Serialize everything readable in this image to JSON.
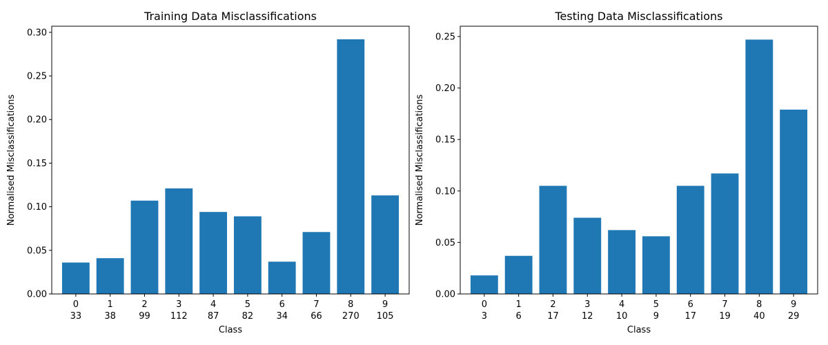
{
  "chart_data": [
    {
      "type": "bar",
      "title": "Training Data Misclassifications",
      "xlabel": "Class",
      "ylabel": "Normalised Misclassifications",
      "categories": [
        "0",
        "1",
        "2",
        "3",
        "4",
        "5",
        "6",
        "7",
        "8",
        "9"
      ],
      "counts": [
        "33",
        "38",
        "99",
        "112",
        "87",
        "82",
        "34",
        "66",
        "270",
        "105"
      ],
      "values": [
        0.036,
        0.041,
        0.107,
        0.121,
        0.094,
        0.089,
        0.037,
        0.071,
        0.292,
        0.113
      ],
      "ylim": [
        0,
        0.307
      ],
      "yticks": [
        "0.00",
        "0.05",
        "0.10",
        "0.15",
        "0.20",
        "0.25",
        "0.30"
      ],
      "color": "#1f77b4"
    },
    {
      "type": "bar",
      "title": "Testing Data Misclassifications",
      "xlabel": "Class",
      "ylabel": "Normalised Misclassifications",
      "categories": [
        "0",
        "1",
        "2",
        "3",
        "4",
        "5",
        "6",
        "7",
        "8",
        "9"
      ],
      "counts": [
        "3",
        "6",
        "17",
        "12",
        "10",
        "9",
        "17",
        "19",
        "40",
        "29"
      ],
      "values": [
        0.018,
        0.037,
        0.105,
        0.074,
        0.062,
        0.056,
        0.105,
        0.117,
        0.247,
        0.179
      ],
      "ylim": [
        0,
        0.26
      ],
      "yticks": [
        "0.00",
        "0.05",
        "0.10",
        "0.15",
        "0.20",
        "0.25"
      ],
      "color": "#1f77b4"
    }
  ]
}
